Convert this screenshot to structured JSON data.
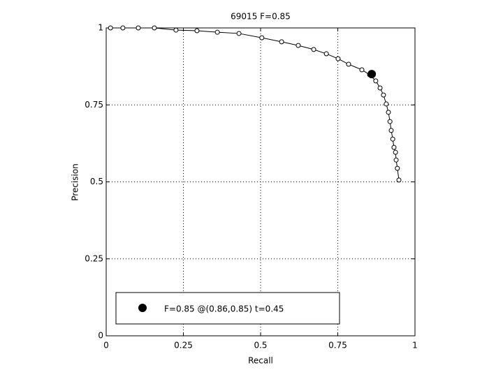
{
  "chart_data": {
    "type": "line",
    "title": "69015 F=0.85",
    "x_label": "Recall",
    "y_label": "Precision",
    "x": [
      0.014,
      0.054,
      0.104,
      0.156,
      0.226,
      0.294,
      0.36,
      0.43,
      0.504,
      0.568,
      0.622,
      0.672,
      0.713,
      0.751,
      0.785,
      0.828,
      0.853,
      0.873,
      0.887,
      0.898,
      0.907,
      0.914,
      0.919,
      0.923,
      0.928,
      0.932,
      0.937,
      0.939,
      0.943,
      0.948
    ],
    "series": [
      {
        "color": "#000000",
        "marker": "open-circle",
        "values": [
          1,
          1,
          1,
          1,
          0.993,
          0.991,
          0.986,
          0.982,
          0.968,
          0.955,
          0.943,
          0.93,
          0.916,
          0.9,
          0.882,
          0.864,
          0.848,
          0.828,
          0.805,
          0.782,
          0.753,
          0.726,
          0.696,
          0.667,
          0.639,
          0.612,
          0.596,
          0.571,
          0.544,
          0.506
        ]
      }
    ],
    "highlight": {
      "x": 0.86,
      "y": 0.85,
      "label": "F=0.85 @(0.86,0.85) t=0.45",
      "color": "#000000"
    },
    "xlim": [
      0,
      1
    ],
    "ylim": [
      0,
      1
    ],
    "xticks": [
      0,
      0.25,
      0.5,
      0.75,
      1
    ],
    "yticks": [
      0,
      0.25,
      0.5,
      0.75,
      1
    ],
    "grid": true,
    "legend_position": "lower left"
  }
}
